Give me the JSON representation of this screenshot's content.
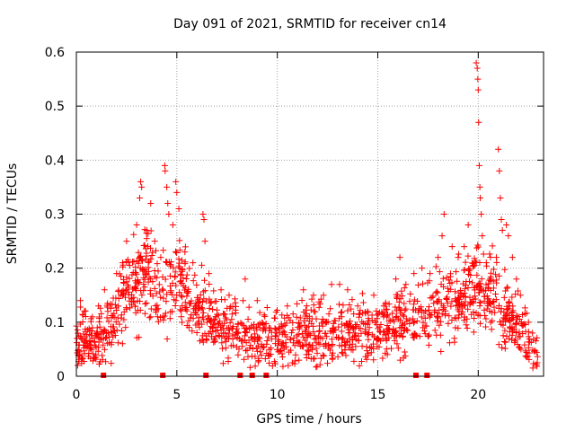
{
  "chart_data": {
    "type": "scatter",
    "title": "Day 091 of 2021, SRMTID for receiver cn14",
    "xlabel": "GPS time / hours",
    "ylabel": "SRMTID / TECUs",
    "xlim": [
      0,
      23.25
    ],
    "ylim": [
      0,
      0.6
    ],
    "xticks": [
      0,
      5,
      10,
      15,
      20
    ],
    "yticks": [
      0,
      0.1,
      0.2,
      0.3,
      0.4,
      0.5,
      0.6
    ],
    "ytick_labels": [
      "0",
      "0.1",
      "0.2",
      "0.3",
      "0.4",
      "0.5",
      "0.6"
    ],
    "grid": true,
    "marker_color": "#ff0000",
    "series": [
      {
        "name": "SRMTID",
        "marker": "plus",
        "profile": [
          [
            0.0,
            0.06
          ],
          [
            0.3,
            0.07
          ],
          [
            0.6,
            0.06
          ],
          [
            0.9,
            0.055
          ],
          [
            1.2,
            0.07
          ],
          [
            1.5,
            0.08
          ],
          [
            1.8,
            0.1
          ],
          [
            2.1,
            0.13
          ],
          [
            2.4,
            0.15
          ],
          [
            2.7,
            0.17
          ],
          [
            3.0,
            0.16
          ],
          [
            3.3,
            0.18
          ],
          [
            3.6,
            0.2
          ],
          [
            3.9,
            0.17
          ],
          [
            4.2,
            0.16
          ],
          [
            4.5,
            0.17
          ],
          [
            4.8,
            0.18
          ],
          [
            5.1,
            0.17
          ],
          [
            5.4,
            0.15
          ],
          [
            5.7,
            0.13
          ],
          [
            6.0,
            0.12
          ],
          [
            6.4,
            0.11
          ],
          [
            6.8,
            0.1
          ],
          [
            7.2,
            0.09
          ],
          [
            7.6,
            0.08
          ],
          [
            8.0,
            0.085
          ],
          [
            8.4,
            0.08
          ],
          [
            8.8,
            0.075
          ],
          [
            9.2,
            0.07
          ],
          [
            9.6,
            0.065
          ],
          [
            10.0,
            0.06
          ],
          [
            10.4,
            0.065
          ],
          [
            10.8,
            0.07
          ],
          [
            11.2,
            0.075
          ],
          [
            11.6,
            0.075
          ],
          [
            12.0,
            0.075
          ],
          [
            12.5,
            0.08
          ],
          [
            13.0,
            0.08
          ],
          [
            13.5,
            0.08
          ],
          [
            14.0,
            0.08
          ],
          [
            14.5,
            0.085
          ],
          [
            15.0,
            0.085
          ],
          [
            15.5,
            0.09
          ],
          [
            16.0,
            0.095
          ],
          [
            16.5,
            0.1
          ],
          [
            17.0,
            0.11
          ],
          [
            17.5,
            0.12
          ],
          [
            18.0,
            0.13
          ],
          [
            18.5,
            0.14
          ],
          [
            19.0,
            0.14
          ],
          [
            19.5,
            0.16
          ],
          [
            19.8,
            0.18
          ],
          [
            20.0,
            0.16
          ],
          [
            20.3,
            0.15
          ],
          [
            20.6,
            0.15
          ],
          [
            21.0,
            0.14
          ],
          [
            21.3,
            0.12
          ],
          [
            21.6,
            0.11
          ],
          [
            21.9,
            0.1
          ],
          [
            22.2,
            0.08
          ],
          [
            22.5,
            0.06
          ],
          [
            22.8,
            0.04
          ],
          [
            23.0,
            0.035
          ]
        ],
        "outliers": [
          [
            0.2,
            0.14
          ],
          [
            0.4,
            0.12
          ],
          [
            0.8,
            0.11
          ],
          [
            1.1,
            0.13
          ],
          [
            1.4,
            0.16
          ],
          [
            2.0,
            0.19
          ],
          [
            2.3,
            0.21
          ],
          [
            2.5,
            0.25
          ],
          [
            3.0,
            0.28
          ],
          [
            3.15,
            0.33
          ],
          [
            3.2,
            0.36
          ],
          [
            3.25,
            0.35
          ],
          [
            3.5,
            0.27
          ],
          [
            3.7,
            0.32
          ],
          [
            3.9,
            0.25
          ],
          [
            4.2,
            0.22
          ],
          [
            4.4,
            0.39
          ],
          [
            4.42,
            0.38
          ],
          [
            4.5,
            0.35
          ],
          [
            4.55,
            0.32
          ],
          [
            4.6,
            0.3
          ],
          [
            4.8,
            0.28
          ],
          [
            4.95,
            0.36
          ],
          [
            5.0,
            0.34
          ],
          [
            5.1,
            0.31
          ],
          [
            5.4,
            0.23
          ],
          [
            5.8,
            0.21
          ],
          [
            6.3,
            0.3
          ],
          [
            6.35,
            0.29
          ],
          [
            6.4,
            0.25
          ],
          [
            6.6,
            0.19
          ],
          [
            7.2,
            0.16
          ],
          [
            7.6,
            0.15
          ],
          [
            8.3,
            0.14
          ],
          [
            8.4,
            0.18
          ],
          [
            9.0,
            0.14
          ],
          [
            10.5,
            0.13
          ],
          [
            11.3,
            0.16
          ],
          [
            11.8,
            0.15
          ],
          [
            12.3,
            0.15
          ],
          [
            12.7,
            0.17
          ],
          [
            13.1,
            0.17
          ],
          [
            13.5,
            0.16
          ],
          [
            14.0,
            0.13
          ],
          [
            14.8,
            0.15
          ],
          [
            15.3,
            0.13
          ],
          [
            15.9,
            0.18
          ],
          [
            16.1,
            0.22
          ],
          [
            16.4,
            0.17
          ],
          [
            16.8,
            0.19
          ],
          [
            17.2,
            0.2
          ],
          [
            17.6,
            0.19
          ],
          [
            18.0,
            0.22
          ],
          [
            18.2,
            0.26
          ],
          [
            18.3,
            0.3
          ],
          [
            18.7,
            0.24
          ],
          [
            19.0,
            0.22
          ],
          [
            19.3,
            0.24
          ],
          [
            19.5,
            0.28
          ],
          [
            19.9,
            0.58
          ],
          [
            19.95,
            0.57
          ],
          [
            19.98,
            0.55
          ],
          [
            20.0,
            0.53
          ],
          [
            20.02,
            0.47
          ],
          [
            20.05,
            0.39
          ],
          [
            20.08,
            0.35
          ],
          [
            20.1,
            0.33
          ],
          [
            20.15,
            0.3
          ],
          [
            20.2,
            0.26
          ],
          [
            20.4,
            0.21
          ],
          [
            20.6,
            0.18
          ],
          [
            20.9,
            0.22
          ],
          [
            21.0,
            0.42
          ],
          [
            21.05,
            0.38
          ],
          [
            21.1,
            0.33
          ],
          [
            21.15,
            0.29
          ],
          [
            21.2,
            0.27
          ],
          [
            21.4,
            0.28
          ],
          [
            21.5,
            0.26
          ],
          [
            21.7,
            0.22
          ],
          [
            21.9,
            0.18
          ],
          [
            22.1,
            0.15
          ],
          [
            22.5,
            0.1
          ],
          [
            22.7,
            0.08
          ]
        ],
        "spread": 0.03,
        "n_points": 1500
      }
    ],
    "gap_markers_x": [
      1.35,
      4.3,
      6.45,
      8.15,
      8.75,
      9.45,
      16.9,
      17.45
    ]
  }
}
